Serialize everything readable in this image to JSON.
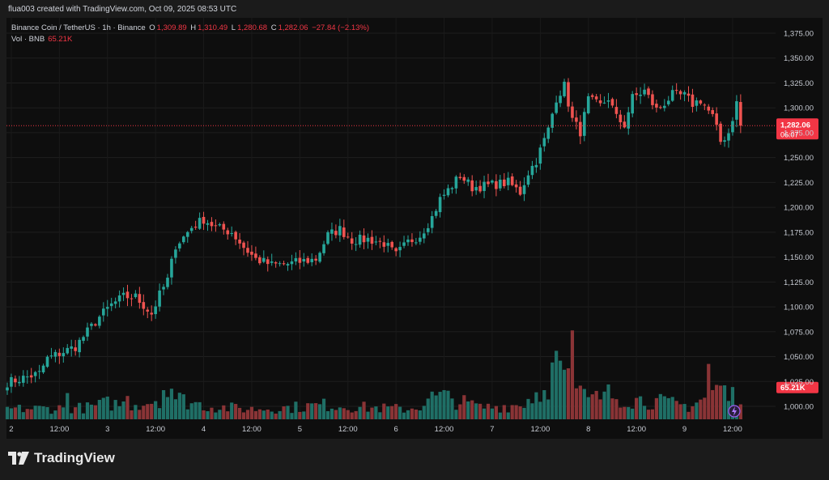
{
  "header": {
    "caption": "flua003 created with TradingView.com, Oct 09, 2025 08:53 UTC"
  },
  "legend": {
    "symbol": "Binance Coin / TetherUS · 1h · Binance",
    "open_label": "O",
    "open": "1,309.89",
    "high_label": "H",
    "high": "1,310.49",
    "low_label": "L",
    "low": "1,280.68",
    "close_label": "C",
    "close": "1,282.06",
    "change": "−27.84 (−2.13%)",
    "volume_label": "Vol · BNB",
    "volume": "65.21K"
  },
  "badges": {
    "price": "1,282.06",
    "countdown": "06:07",
    "volume": "65.21K"
  },
  "footer": {
    "brand": "TradingView"
  },
  "colors": {
    "up": "#26a69a",
    "down": "#ef5350",
    "up_volume": "#1f6f66",
    "down_volume": "#8a3436",
    "price_line": "#f23645"
  },
  "chart_data": {
    "type": "candlestick",
    "interval": "1h",
    "x_ticks": [
      "2",
      "12:00",
      "3",
      "12:00",
      "4",
      "12:00",
      "5",
      "12:00",
      "6",
      "12:00",
      "7",
      "12:00",
      "8",
      "12:00",
      "9",
      "12:00"
    ],
    "y_ticks": [
      1000,
      1025,
      1050,
      1075,
      1100,
      1125,
      1150,
      1175,
      1200,
      1225,
      1250,
      1275,
      1300,
      1325,
      1350,
      1375
    ],
    "y_tick_labels": [
      "1,000.00",
      "1,025.00",
      "1,050.00",
      "1,075.00",
      "1,100.00",
      "1,125.00",
      "1,150.00",
      "1,175.00",
      "1,200.00",
      "1,225.00",
      "1,250.00",
      "1,275.00",
      "1,300.00",
      "1,325.00",
      "1,350.00",
      "1,375.00"
    ],
    "ylim": [
      990,
      1385
    ],
    "last_price": 1282.06,
    "close_path": [
      [
        0,
        1024
      ],
      [
        8,
        1033
      ],
      [
        10,
        1048
      ],
      [
        17,
        1060
      ],
      [
        20,
        1075
      ],
      [
        23,
        1090
      ],
      [
        26,
        1102
      ],
      [
        29,
        1110
      ],
      [
        32,
        1110
      ],
      [
        36,
        1093
      ],
      [
        38,
        1112
      ],
      [
        40,
        1127
      ],
      [
        42,
        1162
      ],
      [
        44,
        1170
      ],
      [
        46,
        1180
      ],
      [
        49,
        1188
      ],
      [
        52,
        1180
      ],
      [
        56,
        1175
      ],
      [
        59,
        1160
      ],
      [
        62,
        1148
      ],
      [
        66,
        1142
      ],
      [
        70,
        1143
      ],
      [
        74,
        1146
      ],
      [
        77,
        1148
      ],
      [
        80,
        1172
      ],
      [
        83,
        1178
      ],
      [
        86,
        1167
      ],
      [
        90,
        1168
      ],
      [
        94,
        1164
      ],
      [
        97,
        1152
      ],
      [
        100,
        1165
      ],
      [
        103,
        1172
      ],
      [
        106,
        1190
      ],
      [
        108,
        1208
      ],
      [
        111,
        1222
      ],
      [
        113,
        1232
      ],
      [
        116,
        1220
      ],
      [
        120,
        1222
      ],
      [
        125,
        1225
      ],
      [
        128,
        1215
      ],
      [
        130,
        1235
      ],
      [
        132,
        1247
      ],
      [
        135,
        1278
      ],
      [
        137,
        1310
      ],
      [
        139,
        1322
      ],
      [
        141,
        1288
      ],
      [
        143,
        1276
      ],
      [
        145,
        1308
      ],
      [
        148,
        1302
      ],
      [
        150,
        1310
      ],
      [
        152,
        1290
      ],
      [
        154,
        1283
      ],
      [
        156,
        1310
      ],
      [
        159,
        1317
      ],
      [
        162,
        1298
      ],
      [
        164,
        1305
      ],
      [
        166,
        1313
      ],
      [
        169,
        1312
      ],
      [
        171,
        1304
      ],
      [
        173,
        1308
      ],
      [
        176,
        1291
      ],
      [
        178,
        1266
      ],
      [
        180,
        1275
      ],
      [
        182,
        1305
      ],
      [
        183,
        1282
      ]
    ],
    "volume_path": [
      [
        0,
        1.4
      ],
      [
        20,
        1.6
      ],
      [
        25,
        2.2
      ],
      [
        30,
        2.0
      ],
      [
        35,
        2.4
      ],
      [
        38,
        3.0
      ],
      [
        40,
        3.4
      ],
      [
        44,
        2.6
      ],
      [
        50,
        1.8
      ],
      [
        60,
        1.4
      ],
      [
        70,
        1.6
      ],
      [
        80,
        2.0
      ],
      [
        90,
        1.6
      ],
      [
        100,
        1.4
      ],
      [
        105,
        2.2
      ],
      [
        108,
        3.2
      ],
      [
        112,
        2.6
      ],
      [
        118,
        1.6
      ],
      [
        128,
        2.0
      ],
      [
        133,
        4.0
      ],
      [
        136,
        5.8
      ],
      [
        139,
        6.6
      ],
      [
        142,
        4.0
      ],
      [
        145,
        2.6
      ],
      [
        150,
        3.4
      ],
      [
        155,
        2.8
      ],
      [
        160,
        2.6
      ],
      [
        165,
        2.2
      ],
      [
        170,
        1.8
      ],
      [
        175,
        3.2
      ],
      [
        178,
        4.6
      ],
      [
        180,
        3.0
      ],
      [
        183,
        3.8
      ]
    ],
    "volume_spikes": [
      [
        15,
        3.6
      ],
      [
        30,
        3.2
      ],
      [
        39,
        4.0
      ],
      [
        41,
        4.2
      ],
      [
        106,
        3.8
      ],
      [
        116,
        2.6
      ],
      [
        134,
        4.0
      ],
      [
        136,
        7.8
      ],
      [
        137,
        9.4
      ],
      [
        139,
        6.8
      ],
      [
        140,
        7.0
      ],
      [
        141,
        12.2
      ],
      [
        149,
        3.8
      ],
      [
        175,
        7.6
      ]
    ]
  }
}
